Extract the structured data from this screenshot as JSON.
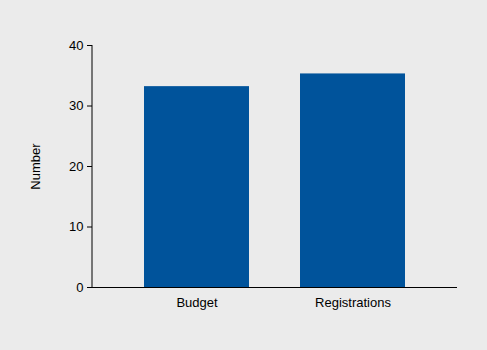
{
  "chart_data": {
    "type": "bar",
    "y_label": "Number",
    "categories": [
      "Budget",
      "Registrations"
    ],
    "values": [
      33.2,
      35.3
    ],
    "color": "#00539b",
    "ylim": [
      0,
      40
    ],
    "yticks": [
      0,
      10,
      20,
      30,
      40
    ],
    "grid": false
  }
}
